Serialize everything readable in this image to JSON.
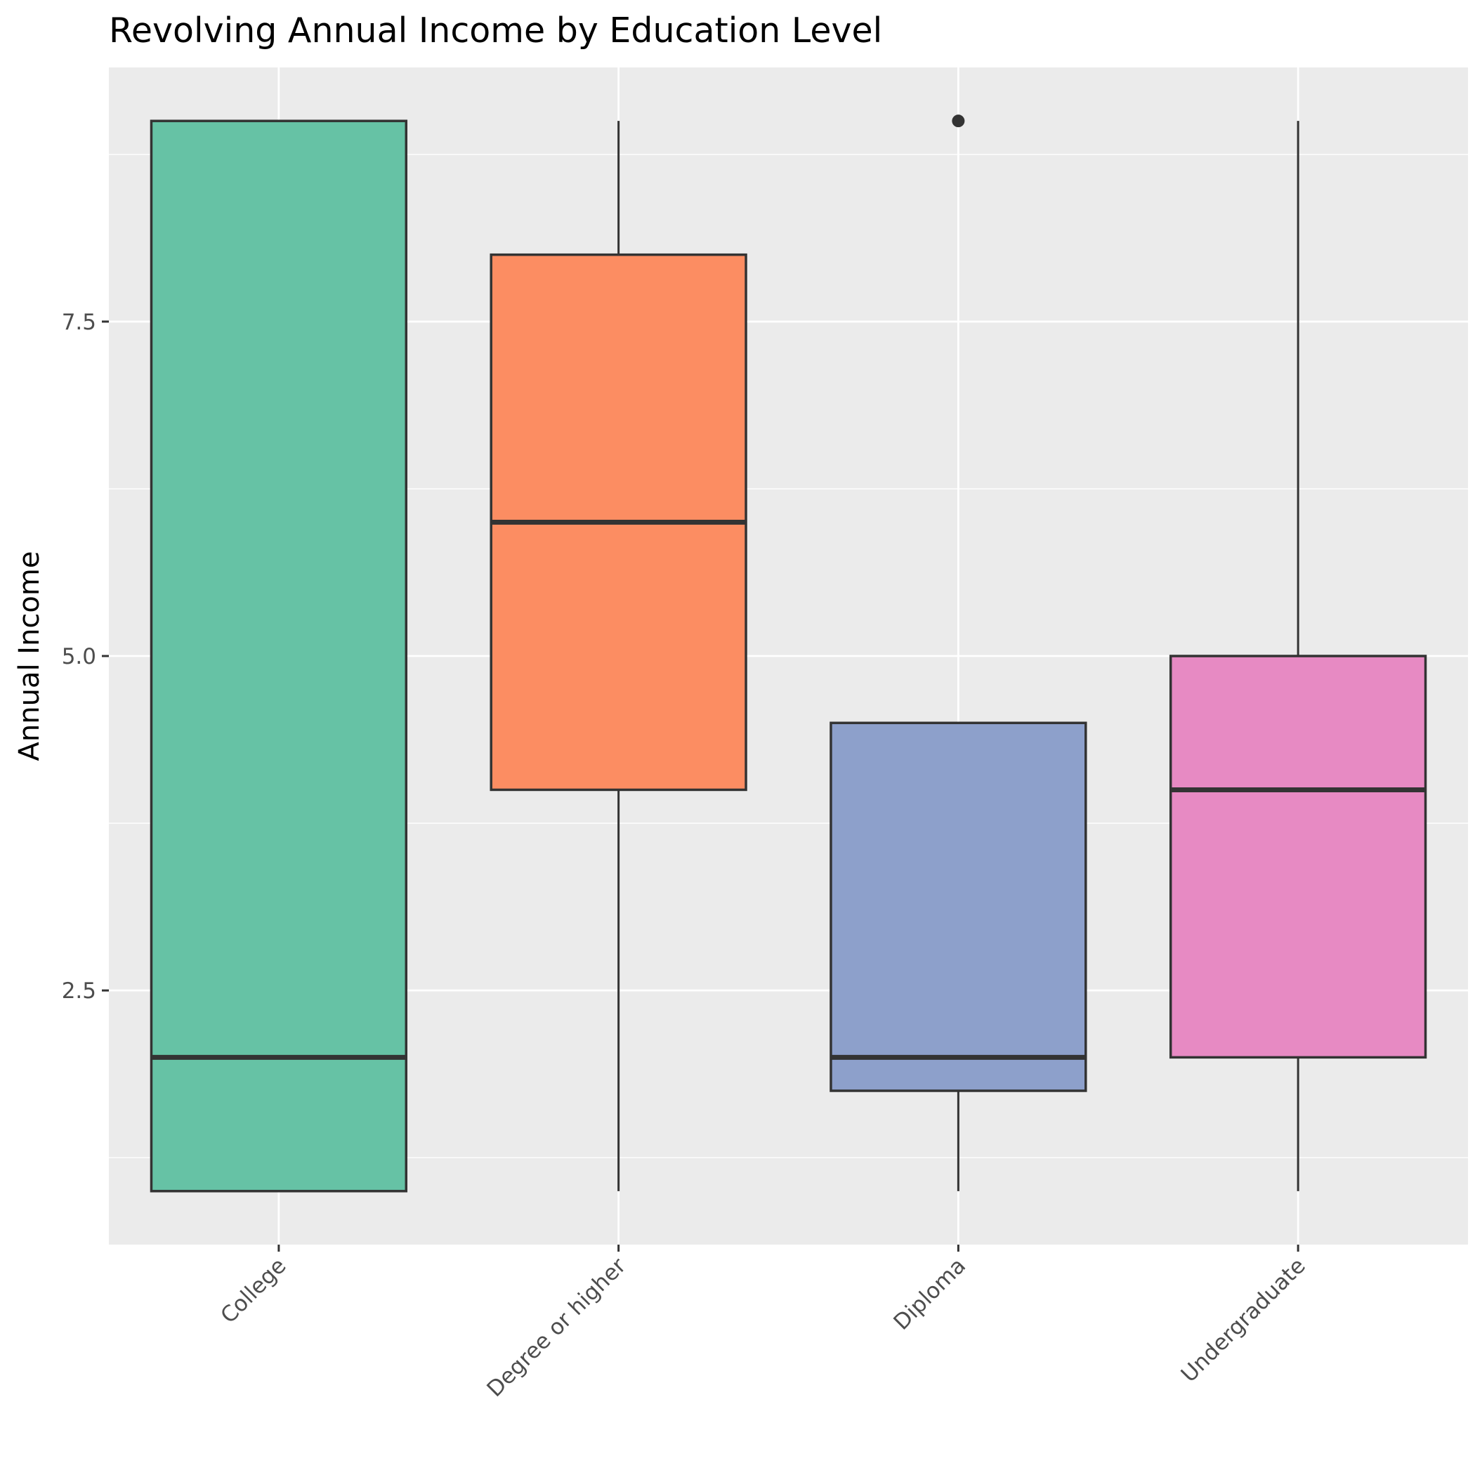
{
  "chart_data": {
    "type": "box",
    "title": "Revolving Annual Income by Education Level",
    "xlabel": "",
    "ylabel": "Annual Income",
    "categories": [
      "College",
      "Degree or higher",
      "Diploma",
      "Undergraduate"
    ],
    "colors": [
      "#66c2a5",
      "#fc8d62",
      "#8da0cb",
      "#e78ac3"
    ],
    "boxes": [
      {
        "category": "College",
        "lower_whisker": 1,
        "q1": 1,
        "median": 2,
        "q3": 9,
        "upper_whisker": 9,
        "outliers": []
      },
      {
        "category": "Degree or higher",
        "lower_whisker": 1,
        "q1": 4,
        "median": 6,
        "q3": 8,
        "upper_whisker": 9,
        "outliers": []
      },
      {
        "category": "Diploma",
        "lower_whisker": 1,
        "q1": 1.75,
        "median": 2,
        "q3": 4.5,
        "upper_whisker": 4.5,
        "outliers": [
          9
        ]
      },
      {
        "category": "Undergraduate",
        "lower_whisker": 1,
        "q1": 2,
        "median": 4,
        "q3": 5,
        "upper_whisker": 9,
        "outliers": []
      }
    ],
    "ylim": [
      0.6,
      9.4
    ],
    "yticks": [
      2.5,
      5.0,
      7.5
    ],
    "ytick_labels": [
      "2.5",
      "5.0",
      "7.5"
    ],
    "y_minor_gridlines": [
      1.25,
      3.75,
      6.25,
      8.75
    ],
    "grid": true,
    "legend": "none",
    "panel_background": "#ebebeb",
    "box_outline_color": "#333333"
  }
}
